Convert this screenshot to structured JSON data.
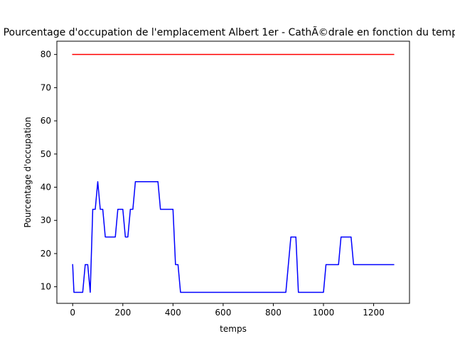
{
  "chart_data": {
    "type": "line",
    "title": "Pourcentage d'occupation de l'emplacement Albert 1er - CathÃ©drale en fonction du temps",
    "xlabel": "temps",
    "ylabel": "Pourcentage d'occupation",
    "xlim": [
      -63,
      1343
    ],
    "ylim": [
      5,
      84
    ],
    "xticks": [
      0,
      200,
      400,
      600,
      800,
      1000,
      1200
    ],
    "yticks": [
      10,
      20,
      30,
      40,
      50,
      60,
      70,
      80
    ],
    "grid": false,
    "legend": "none",
    "series": [
      {
        "color": "#0000ff",
        "x": [
          0,
          5,
          40,
          50,
          60,
          70,
          80,
          90,
          100,
          110,
          120,
          130,
          140,
          150,
          160,
          170,
          180,
          190,
          200,
          210,
          220,
          230,
          240,
          250,
          260,
          340,
          350,
          400,
          410,
          420,
          430,
          440,
          850,
          860,
          870,
          880,
          890,
          900,
          910,
          1000,
          1010,
          1060,
          1070,
          1110,
          1120,
          1280
        ],
        "y": [
          16.67,
          8.33,
          8.33,
          16.67,
          16.67,
          8.33,
          33.33,
          33.33,
          41.67,
          33.33,
          33.33,
          25,
          25,
          25,
          25,
          25,
          33.33,
          33.33,
          33.33,
          25,
          25,
          33.33,
          33.33,
          41.67,
          41.67,
          41.67,
          33.33,
          33.33,
          16.67,
          16.67,
          8.33,
          8.33,
          8.33,
          16.67,
          25,
          25,
          25,
          8.33,
          8.33,
          8.33,
          16.67,
          16.67,
          25,
          25,
          16.67,
          16.67
        ]
      },
      {
        "color": "#ff0000",
        "x": [
          0,
          1280
        ],
        "y": [
          80,
          80
        ]
      }
    ]
  }
}
